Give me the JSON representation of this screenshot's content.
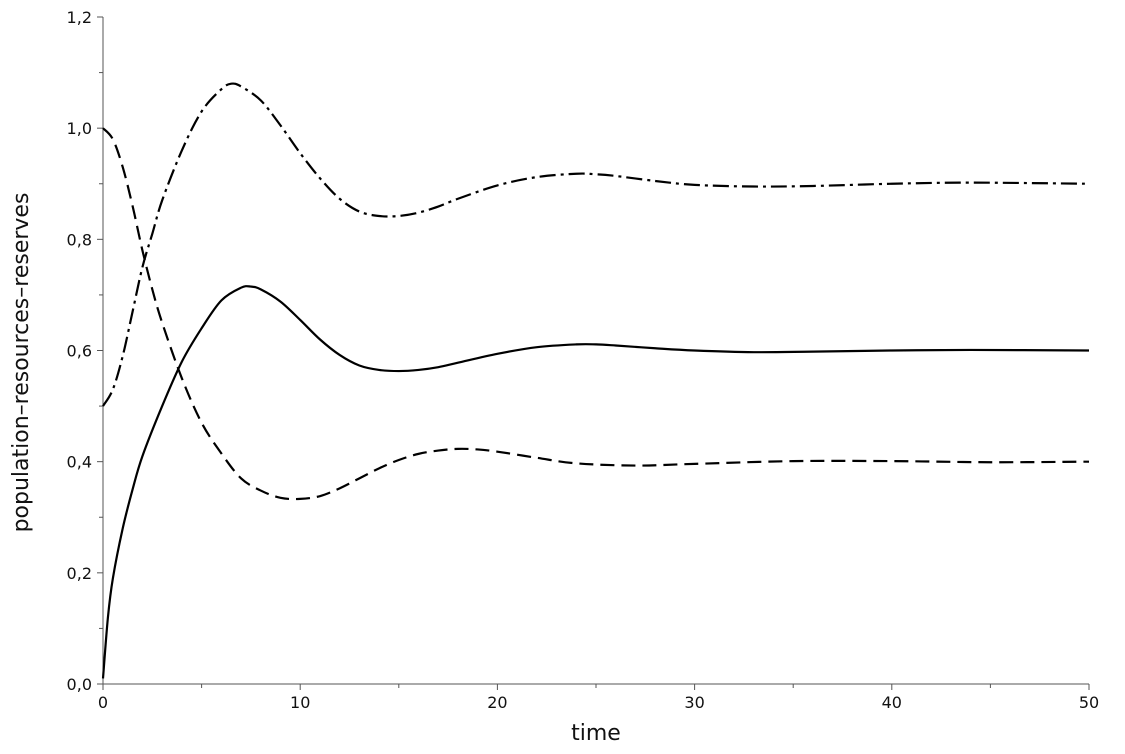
{
  "chart_data": {
    "type": "line",
    "title": "",
    "xlabel": "time",
    "ylabel": "population–resources–reserves",
    "xlim": [
      0,
      50
    ],
    "ylim": [
      0,
      1.2
    ],
    "x_ticks": [
      0,
      10,
      20,
      30,
      40,
      50
    ],
    "x_tick_labels": [
      "0",
      "10",
      "20",
      "30",
      "40",
      "50"
    ],
    "x_minor_ticks": [
      5,
      15,
      25,
      35,
      45
    ],
    "y_ticks": [
      0,
      0.2,
      0.4,
      0.6,
      0.8,
      1.0,
      1.2
    ],
    "y_tick_labels": [
      "0,0",
      "0,2",
      "0,4",
      "0,6",
      "0,8",
      "1,0",
      "1,2"
    ],
    "y_minor_ticks": [
      0.1,
      0.3,
      0.5,
      0.7,
      0.9,
      1.1
    ],
    "grid": false,
    "legend": "none",
    "series": [
      {
        "style": "solid",
        "color": "#000000",
        "x": [
          0,
          0.25,
          0.5,
          1,
          1.5,
          2,
          3,
          4,
          5,
          6,
          7,
          7.5,
          8,
          9,
          10,
          11,
          12,
          13,
          14,
          15,
          16,
          17,
          18,
          20,
          22,
          24,
          25,
          26,
          28,
          30,
          33,
          36,
          40,
          44,
          50
        ],
        "y": [
          0.01,
          0.12,
          0.19,
          0.28,
          0.35,
          0.41,
          0.5,
          0.58,
          0.64,
          0.69,
          0.713,
          0.715,
          0.71,
          0.688,
          0.655,
          0.62,
          0.592,
          0.573,
          0.565,
          0.563,
          0.565,
          0.57,
          0.578,
          0.594,
          0.606,
          0.611,
          0.611,
          0.609,
          0.604,
          0.6,
          0.597,
          0.598,
          0.6,
          0.601,
          0.6
        ]
      },
      {
        "style": "dashed",
        "color": "#000000",
        "x": [
          0,
          0.5,
          1,
          1.5,
          2,
          2.5,
          3,
          4,
          5,
          6,
          7,
          8,
          9,
          10,
          11,
          12,
          13,
          14,
          15,
          16,
          17,
          18,
          19,
          20,
          22,
          24,
          27,
          30,
          35,
          40,
          45,
          50
        ],
        "y": [
          1.0,
          0.98,
          0.93,
          0.86,
          0.78,
          0.71,
          0.65,
          0.55,
          0.47,
          0.415,
          0.37,
          0.348,
          0.335,
          0.333,
          0.338,
          0.352,
          0.37,
          0.388,
          0.403,
          0.414,
          0.42,
          0.423,
          0.422,
          0.418,
          0.407,
          0.397,
          0.393,
          0.396,
          0.401,
          0.401,
          0.399,
          0.4
        ]
      },
      {
        "style": "dashdot",
        "color": "#000000",
        "x": [
          0,
          0.5,
          1,
          1.5,
          2,
          2.5,
          3,
          4,
          5,
          6,
          6.5,
          7,
          8,
          9,
          10,
          11,
          12,
          13,
          14,
          15,
          16,
          17,
          18,
          20,
          22,
          24,
          25,
          26,
          28,
          30,
          33,
          36,
          40,
          44,
          50
        ],
        "y": [
          0.5,
          0.53,
          0.59,
          0.67,
          0.75,
          0.81,
          0.87,
          0.96,
          1.03,
          1.07,
          1.08,
          1.075,
          1.05,
          1.005,
          0.955,
          0.91,
          0.873,
          0.85,
          0.842,
          0.842,
          0.848,
          0.859,
          0.873,
          0.897,
          0.912,
          0.918,
          0.917,
          0.914,
          0.905,
          0.898,
          0.895,
          0.896,
          0.9,
          0.902,
          0.9
        ]
      }
    ]
  }
}
